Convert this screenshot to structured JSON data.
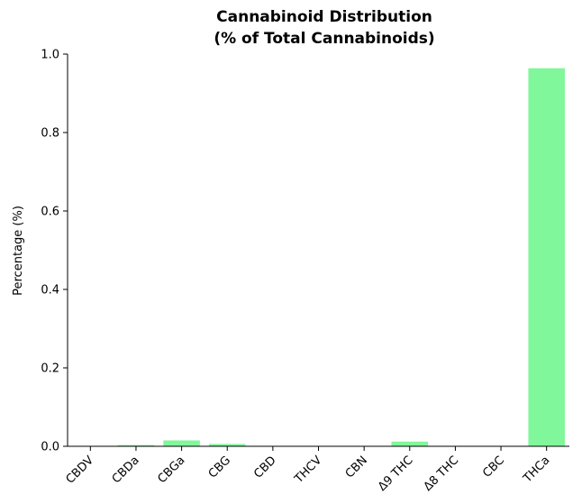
{
  "chart_data": {
    "type": "bar",
    "title_lines": [
      "Cannabinoid Distribution",
      "(% of Total Cannabinoids)"
    ],
    "xlabel": "",
    "ylabel": "Percentage (%)",
    "ylim": [
      0,
      1.0
    ],
    "yticks": [
      "0.0",
      "0.2",
      "0.4",
      "0.6",
      "0.8",
      "1.0"
    ],
    "grid": false,
    "legend": "none",
    "bar_color": "#80f79a",
    "categories": [
      "CBDV",
      "CBDa",
      "CBGa",
      "CBG",
      "CBD",
      "THCV",
      "CBN",
      "Δ9 THC",
      "Δ8 THC",
      "CBC",
      "THCa"
    ],
    "values": [
      0.0,
      0.003,
      0.015,
      0.006,
      0.0,
      0.0,
      0.0,
      0.012,
      0.0,
      0.0,
      0.964
    ]
  }
}
